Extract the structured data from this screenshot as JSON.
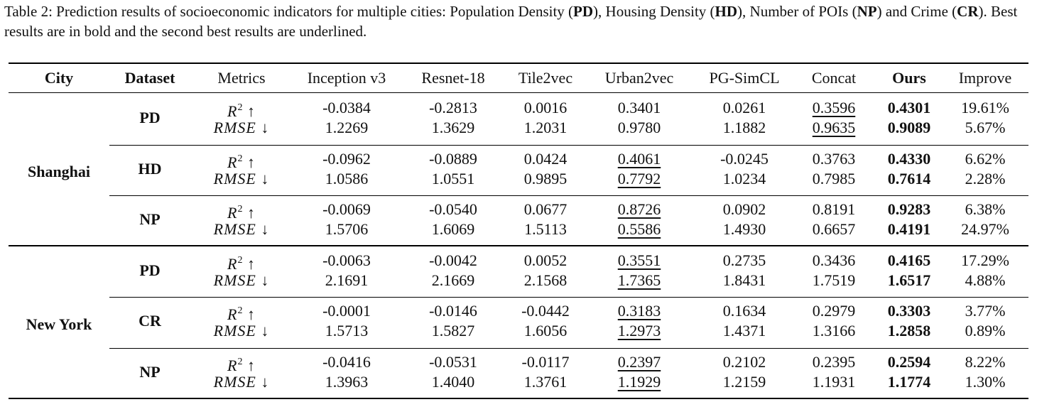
{
  "caption": {
    "parts": [
      {
        "t": "Table 2: Prediction results of socioeconomic indicators for multiple cities: Population Density (",
        "b": false
      },
      {
        "t": "PD",
        "b": true
      },
      {
        "t": "), Housing Density (",
        "b": false
      },
      {
        "t": "HD",
        "b": true
      },
      {
        "t": "), Number of POIs (",
        "b": false
      },
      {
        "t": "NP",
        "b": true
      },
      {
        "t": ") and Crime (",
        "b": false
      },
      {
        "t": "CR",
        "b": true
      },
      {
        "t": "). Best results are in bold and the second best results are underlined.",
        "b": false
      }
    ]
  },
  "table": {
    "headers": [
      "City",
      "Dataset",
      "Metrics",
      "Inception v3",
      "Resnet-18",
      "Tile2vec",
      "Urban2vec",
      "PG-SimCL",
      "Concat",
      "Ours",
      "Improve"
    ],
    "metrics": {
      "r2_base": "R",
      "r2_sup": "2",
      "r2_arrow": " ↑",
      "rmse": "RMSE ↓"
    },
    "cities": [
      {
        "name": "Shanghai",
        "datasets": [
          {
            "name": "PD",
            "r2": [
              "-0.0384",
              "-0.2813",
              "0.0016",
              "0.3401",
              "0.0261",
              "0.3596",
              "0.4301",
              "19.61%"
            ],
            "rmse": [
              "1.2269",
              "1.3629",
              "1.2031",
              "0.9780",
              "1.1882",
              "0.9635",
              "0.9089",
              "5.67%"
            ],
            "second_best_col": 5
          },
          {
            "name": "HD",
            "r2": [
              "-0.0962",
              "-0.0889",
              "0.0424",
              "0.4061",
              "-0.0245",
              "0.3763",
              "0.4330",
              "6.62%"
            ],
            "rmse": [
              "1.0586",
              "1.0551",
              "0.9895",
              "0.7792",
              "1.0234",
              "0.7985",
              "0.7614",
              "2.28%"
            ],
            "second_best_col": 3
          },
          {
            "name": "NP",
            "r2": [
              "-0.0069",
              "-0.0540",
              "0.0677",
              "0.8726",
              "0.0902",
              "0.8191",
              "0.9283",
              "6.38%"
            ],
            "rmse": [
              "1.5706",
              "1.6069",
              "1.5113",
              "0.5586",
              "1.4930",
              "0.6657",
              "0.4191",
              "24.97%"
            ],
            "second_best_col": 3
          }
        ]
      },
      {
        "name": "New York",
        "datasets": [
          {
            "name": "PD",
            "r2": [
              "-0.0063",
              "-0.0042",
              "0.0052",
              "0.3551",
              "0.2735",
              "0.3436",
              "0.4165",
              "17.29%"
            ],
            "rmse": [
              "2.1691",
              "2.1669",
              "2.1568",
              "1.7365",
              "1.8431",
              "1.7519",
              "1.6517",
              "4.88%"
            ],
            "second_best_col": 3
          },
          {
            "name": "CR",
            "r2": [
              "-0.0001",
              "-0.0146",
              "-0.0442",
              "0.3183",
              "0.1634",
              "0.2979",
              "0.3303",
              "3.77%"
            ],
            "rmse": [
              "1.5713",
              "1.5827",
              "1.6056",
              "1.2973",
              "1.4371",
              "1.3166",
              "1.2858",
              "0.89%"
            ],
            "second_best_col": 3
          },
          {
            "name": "NP",
            "r2": [
              "-0.0416",
              "-0.0531",
              "-0.0117",
              "0.2397",
              "0.2102",
              "0.2395",
              "0.2594",
              "8.22%"
            ],
            "rmse": [
              "1.3963",
              "1.4040",
              "1.3761",
              "1.1929",
              "1.2159",
              "1.1931",
              "1.1774",
              "1.30%"
            ],
            "second_best_col": 3
          }
        ]
      }
    ],
    "best_col": 6
  }
}
